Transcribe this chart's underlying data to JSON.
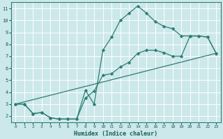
{
  "title": "",
  "xlabel": "Humidex (Indice chaleur)",
  "bg_color": "#cce8ea",
  "grid_color": "#ffffff",
  "line_color": "#2d7d74",
  "xlim": [
    -0.5,
    23.5
  ],
  "ylim": [
    1.5,
    11.5
  ],
  "xticks": [
    0,
    1,
    2,
    3,
    4,
    5,
    6,
    7,
    8,
    9,
    10,
    11,
    12,
    13,
    14,
    15,
    16,
    17,
    18,
    19,
    20,
    21,
    22,
    23
  ],
  "yticks": [
    2,
    3,
    4,
    5,
    6,
    7,
    8,
    9,
    10,
    11
  ],
  "line1_x": [
    0,
    1,
    2,
    3,
    4,
    5,
    6,
    7,
    8,
    9,
    10,
    11,
    12,
    13,
    14,
    15,
    16,
    17,
    18,
    19,
    20,
    21,
    22,
    23
  ],
  "line1_y": [
    3.0,
    3.0,
    2.2,
    2.3,
    1.85,
    1.75,
    1.75,
    1.75,
    4.15,
    3.0,
    7.5,
    8.6,
    10.0,
    10.6,
    11.2,
    10.6,
    9.9,
    9.5,
    9.3,
    8.7,
    8.7,
    8.7,
    8.6,
    7.25
  ],
  "line2_x": [
    0,
    1,
    2,
    3,
    4,
    5,
    6,
    7,
    8,
    9,
    10,
    11,
    12,
    13,
    14,
    15,
    16,
    17,
    18,
    19,
    20,
    21,
    22,
    23
  ],
  "line2_y": [
    3.0,
    3.0,
    2.2,
    2.3,
    1.85,
    1.75,
    1.75,
    1.75,
    3.5,
    4.1,
    5.4,
    5.55,
    6.1,
    6.5,
    7.25,
    7.5,
    7.5,
    7.3,
    7.0,
    7.0,
    8.7,
    8.7,
    8.6,
    7.25
  ],
  "line3_x": [
    0,
    23
  ],
  "line3_y": [
    3.0,
    7.25
  ]
}
